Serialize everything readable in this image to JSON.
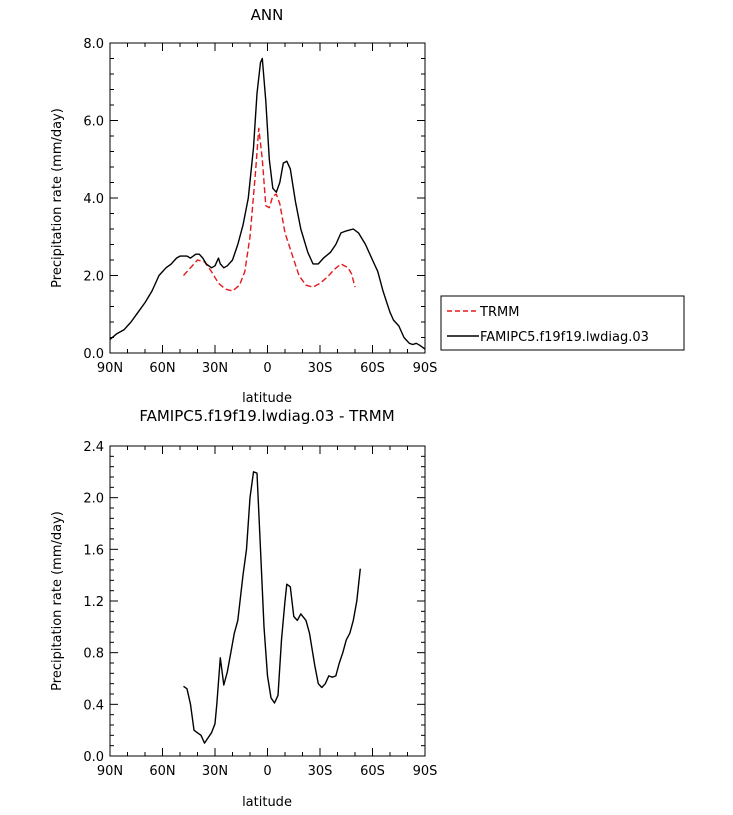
{
  "chart_data": [
    {
      "type": "line",
      "title": "ANN",
      "xlabel": "latitude",
      "ylabel": "Precipitation rate (mm/day)",
      "xlim": [
        90,
        -90
      ],
      "ylim": [
        0,
        8
      ],
      "x_ticks": [
        90,
        60,
        30,
        0,
        -30,
        -60,
        -90
      ],
      "x_tick_labels": [
        "90N",
        "60N",
        "30N",
        "0",
        "30S",
        "60S",
        "90S"
      ],
      "y_ticks": [
        0,
        2,
        4,
        6,
        8
      ],
      "y_tick_labels": [
        "0.0",
        "2.0",
        "4.0",
        "6.0",
        "8.0"
      ],
      "legend_position": "right",
      "series": [
        {
          "name": "TRMM",
          "color": "#e31a1c",
          "dash": true,
          "points": [
            [
              48,
              2.0
            ],
            [
              44,
              2.2
            ],
            [
              40,
              2.4
            ],
            [
              36,
              2.35
            ],
            [
              32,
              2.1
            ],
            [
              28,
              1.8
            ],
            [
              24,
              1.65
            ],
            [
              20,
              1.6
            ],
            [
              16,
              1.75
            ],
            [
              13,
              2.1
            ],
            [
              10,
              3.0
            ],
            [
              7,
              4.6
            ],
            [
              5,
              5.8
            ],
            [
              3,
              5.0
            ],
            [
              1,
              3.8
            ],
            [
              -1,
              3.75
            ],
            [
              -3,
              4.05
            ],
            [
              -5,
              4.1
            ],
            [
              -7,
              3.85
            ],
            [
              -10,
              3.1
            ],
            [
              -14,
              2.55
            ],
            [
              -18,
              2.0
            ],
            [
              -22,
              1.75
            ],
            [
              -26,
              1.7
            ],
            [
              -30,
              1.8
            ],
            [
              -34,
              1.95
            ],
            [
              -38,
              2.15
            ],
            [
              -42,
              2.3
            ],
            [
              -46,
              2.2
            ],
            [
              -48,
              2.05
            ],
            [
              -50,
              1.7
            ]
          ]
        },
        {
          "name": "FAMIPC5.f19f19.lwdiag.03",
          "color": "#000000",
          "dash": false,
          "points": [
            [
              90,
              0.35
            ],
            [
              86,
              0.5
            ],
            [
              82,
              0.6
            ],
            [
              78,
              0.8
            ],
            [
              74,
              1.05
            ],
            [
              70,
              1.3
            ],
            [
              66,
              1.6
            ],
            [
              62,
              2.0
            ],
            [
              58,
              2.2
            ],
            [
              55,
              2.3
            ],
            [
              52,
              2.45
            ],
            [
              50,
              2.5
            ],
            [
              46,
              2.5
            ],
            [
              44,
              2.45
            ],
            [
              41,
              2.55
            ],
            [
              39,
              2.55
            ],
            [
              37,
              2.45
            ],
            [
              35,
              2.3
            ],
            [
              32,
              2.2
            ],
            [
              30,
              2.25
            ],
            [
              28,
              2.45
            ],
            [
              27,
              2.3
            ],
            [
              25,
              2.2
            ],
            [
              23,
              2.25
            ],
            [
              20,
              2.4
            ],
            [
              17,
              2.8
            ],
            [
              14,
              3.3
            ],
            [
              11,
              4.0
            ],
            [
              8,
              5.3
            ],
            [
              6,
              6.7
            ],
            [
              4,
              7.5
            ],
            [
              3,
              7.6
            ],
            [
              1,
              6.5
            ],
            [
              -1,
              5.0
            ],
            [
              -3,
              4.25
            ],
            [
              -5,
              4.15
            ],
            [
              -7,
              4.4
            ],
            [
              -9,
              4.9
            ],
            [
              -11,
              4.95
            ],
            [
              -13,
              4.75
            ],
            [
              -16,
              3.9
            ],
            [
              -19,
              3.2
            ],
            [
              -23,
              2.6
            ],
            [
              -26,
              2.3
            ],
            [
              -29,
              2.3
            ],
            [
              -32,
              2.45
            ],
            [
              -36,
              2.6
            ],
            [
              -39,
              2.8
            ],
            [
              -42,
              3.1
            ],
            [
              -45,
              3.15
            ],
            [
              -49,
              3.2
            ],
            [
              -52,
              3.1
            ],
            [
              -56,
              2.8
            ],
            [
              -60,
              2.4
            ],
            [
              -63,
              2.1
            ],
            [
              -66,
              1.6
            ],
            [
              -70,
              1.05
            ],
            [
              -72,
              0.85
            ],
            [
              -75,
              0.7
            ],
            [
              -78,
              0.4
            ],
            [
              -81,
              0.25
            ],
            [
              -83,
              0.22
            ],
            [
              -85,
              0.25
            ],
            [
              -87,
              0.2
            ],
            [
              -90,
              0.1
            ]
          ]
        }
      ]
    },
    {
      "type": "line",
      "title": "FAMIPC5.f19f19.lwdiag.03 - TRMM",
      "xlabel": "latitude",
      "ylabel": "Precipitation rate (mm/day)",
      "xlim": [
        90,
        -90
      ],
      "ylim": [
        0,
        2.4
      ],
      "x_ticks": [
        90,
        60,
        30,
        0,
        -30,
        -60,
        -90
      ],
      "x_tick_labels": [
        "90N",
        "60N",
        "30N",
        "0",
        "30S",
        "60S",
        "90S"
      ],
      "y_ticks": [
        0,
        0.4,
        0.8,
        1.2,
        1.6,
        2.0,
        2.4
      ],
      "y_tick_labels": [
        "0.0",
        "0.4",
        "0.8",
        "1.2",
        "1.6",
        "2.0",
        "2.4"
      ],
      "series": [
        {
          "name": "",
          "color": "#000000",
          "dash": false,
          "points": [
            [
              48,
              0.54
            ],
            [
              46,
              0.52
            ],
            [
              44,
              0.4
            ],
            [
              42,
              0.2
            ],
            [
              40,
              0.18
            ],
            [
              38,
              0.16
            ],
            [
              36,
              0.1
            ],
            [
              34,
              0.14
            ],
            [
              32,
              0.18
            ],
            [
              30,
              0.25
            ],
            [
              29,
              0.4
            ],
            [
              27,
              0.76
            ],
            [
              25,
              0.55
            ],
            [
              23,
              0.65
            ],
            [
              21,
              0.8
            ],
            [
              19,
              0.95
            ],
            [
              17,
              1.05
            ],
            [
              14,
              1.4
            ],
            [
              12,
              1.6
            ],
            [
              10,
              2.0
            ],
            [
              8,
              2.2
            ],
            [
              6,
              2.19
            ],
            [
              4,
              1.6
            ],
            [
              2,
              1.0
            ],
            [
              0,
              0.62
            ],
            [
              -2,
              0.45
            ],
            [
              -4,
              0.41
            ],
            [
              -6,
              0.47
            ],
            [
              -8,
              0.9
            ],
            [
              -10,
              1.2
            ],
            [
              -11,
              1.33
            ],
            [
              -13,
              1.31
            ],
            [
              -15,
              1.08
            ],
            [
              -17,
              1.05
            ],
            [
              -19,
              1.1
            ],
            [
              -22,
              1.05
            ],
            [
              -24,
              0.95
            ],
            [
              -27,
              0.7
            ],
            [
              -29,
              0.56
            ],
            [
              -31,
              0.53
            ],
            [
              -33,
              0.56
            ],
            [
              -35,
              0.62
            ],
            [
              -37,
              0.61
            ],
            [
              -39,
              0.62
            ],
            [
              -41,
              0.72
            ],
            [
              -43,
              0.8
            ],
            [
              -45,
              0.9
            ],
            [
              -47,
              0.95
            ],
            [
              -49,
              1.05
            ],
            [
              -51,
              1.2
            ],
            [
              -53,
              1.45
            ]
          ]
        }
      ]
    }
  ]
}
